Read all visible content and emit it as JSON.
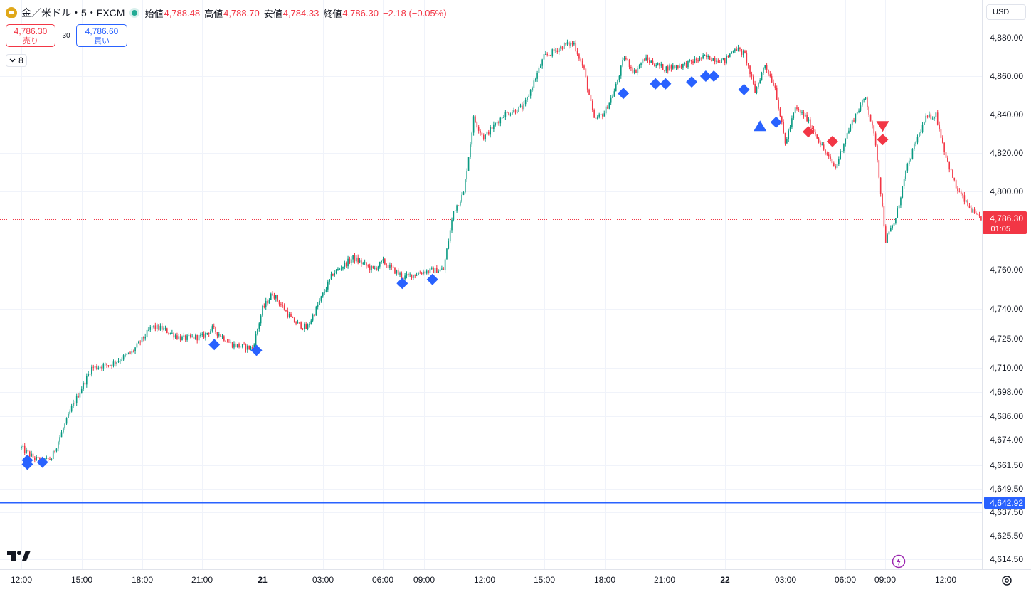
{
  "header": {
    "symbol": "金／米ドル・5・FXCM",
    "open_label": "始値",
    "open_value": "4,788.48",
    "high_label": "高値",
    "high_value": "4,788.70",
    "low_label": "安値",
    "low_value": "4,784.33",
    "close_label": "終値",
    "close_value": "4,786.30",
    "change": "−2.18 (−0.05%)"
  },
  "trade": {
    "sell_price": "4,786.30",
    "sell_label": "売り",
    "spread": "30",
    "buy_price": "4,786.60",
    "buy_label": "買い"
  },
  "collapse": {
    "count": "8"
  },
  "currency": "USD",
  "colors": {
    "up": "#089981",
    "down": "#f23645",
    "blue_marker": "#2962ff",
    "red_marker": "#f23645",
    "grid": "#f0f3fa"
  },
  "icons": [
    "gold-symbol-icon",
    "chevron-down-icon",
    "tradingview-logo-icon",
    "lightning-icon",
    "settings-icon"
  ],
  "chart_data": {
    "type": "candlestick",
    "interval": "5m",
    "y_ticks": [
      "4,880.00",
      "4,860.00",
      "4,840.00",
      "4,820.00",
      "4,800.00",
      "4,760.00",
      "4,740.00",
      "4,725.00",
      "4,710.00",
      "4,698.00",
      "4,686.00",
      "4,674.00",
      "4,661.50",
      "4,649.50",
      "4,637.50",
      "4,625.50",
      "4,614.50"
    ],
    "x_ticks": [
      "12:00",
      "15:00",
      "18:00",
      "21:00",
      "21",
      "03:00",
      "06:00",
      "09:00",
      "12:00",
      "15:00",
      "18:00",
      "21:00",
      "22",
      "03:00",
      "06:00",
      "09:00",
      "12:00"
    ],
    "current_price": "4,786.30",
    "countdown": "01:05",
    "horizontal_line": "4,642.92",
    "path": [
      [
        0,
        4670
      ],
      [
        0.5,
        4666
      ],
      [
        1,
        4663
      ],
      [
        1.5,
        4665
      ],
      [
        2.5,
        4690
      ],
      [
        3.5,
        4710
      ],
      [
        4.5,
        4712
      ],
      [
        5.5,
        4718
      ],
      [
        6.5,
        4731
      ],
      [
        7,
        4730
      ],
      [
        8,
        4725
      ],
      [
        9,
        4726
      ],
      [
        9.5,
        4730
      ],
      [
        10.5,
        4722
      ],
      [
        11.5,
        4720
      ],
      [
        12,
        4740
      ],
      [
        12.5,
        4748
      ],
      [
        13.5,
        4734
      ],
      [
        14.2,
        4730
      ],
      [
        15.5,
        4758
      ],
      [
        16.5,
        4766
      ],
      [
        17.5,
        4760
      ],
      [
        18,
        4764
      ],
      [
        19,
        4756
      ],
      [
        20,
        4759
      ],
      [
        21,
        4760
      ],
      [
        21.5,
        4790
      ],
      [
        22,
        4799
      ],
      [
        22.5,
        4838
      ],
      [
        23,
        4828
      ],
      [
        24,
        4840
      ],
      [
        25,
        4844
      ],
      [
        26,
        4870
      ],
      [
        27,
        4876
      ],
      [
        27.5,
        4877
      ],
      [
        28,
        4863
      ],
      [
        28.5,
        4837
      ],
      [
        29,
        4841
      ],
      [
        29.5,
        4852
      ],
      [
        30,
        4870
      ],
      [
        30.5,
        4862
      ],
      [
        31,
        4869
      ],
      [
        32,
        4864
      ],
      [
        33,
        4866
      ],
      [
        34,
        4870
      ],
      [
        34.5,
        4869
      ],
      [
        35,
        4868
      ],
      [
        35.5,
        4875
      ],
      [
        36,
        4871
      ],
      [
        36.5,
        4852
      ],
      [
        37,
        4866
      ],
      [
        37.5,
        4854
      ],
      [
        38,
        4825
      ],
      [
        38.5,
        4843
      ],
      [
        39,
        4839
      ],
      [
        39.5,
        4830
      ],
      [
        40,
        4820
      ],
      [
        40.5,
        4812
      ],
      [
        41,
        4828
      ],
      [
        41.5,
        4840
      ],
      [
        42,
        4849
      ],
      [
        42.5,
        4825
      ],
      [
        43,
        4775
      ],
      [
        43.5,
        4786
      ],
      [
        44,
        4810
      ],
      [
        44.5,
        4826
      ],
      [
        45,
        4838
      ],
      [
        45.5,
        4840
      ],
      [
        46,
        4818
      ],
      [
        46.5,
        4802
      ],
      [
        47,
        4794
      ],
      [
        47.5,
        4787
      ],
      [
        48,
        4786
      ]
    ],
    "markers": [
      {
        "type": "diamond",
        "color": "blue",
        "x": 0.3,
        "price": 4662
      },
      {
        "type": "diamond",
        "color": "blue",
        "x": 0.3,
        "price": 4664
      },
      {
        "type": "diamond",
        "color": "blue",
        "x": 1.05,
        "price": 4663
      },
      {
        "type": "diamond",
        "color": "blue",
        "x": 9.6,
        "price": 4722
      },
      {
        "type": "diamond",
        "color": "blue",
        "x": 11.7,
        "price": 4719
      },
      {
        "type": "diamond",
        "color": "blue",
        "x": 18.95,
        "price": 4753
      },
      {
        "type": "diamond",
        "color": "blue",
        "x": 20.45,
        "price": 4755
      },
      {
        "type": "diamond",
        "color": "blue",
        "x": 29.95,
        "price": 4851
      },
      {
        "type": "diamond",
        "color": "blue",
        "x": 31.55,
        "price": 4856
      },
      {
        "type": "diamond",
        "color": "blue",
        "x": 32.05,
        "price": 4856
      },
      {
        "type": "diamond",
        "color": "blue",
        "x": 33.35,
        "price": 4857
      },
      {
        "type": "diamond",
        "color": "blue",
        "x": 34.05,
        "price": 4860
      },
      {
        "type": "diamond",
        "color": "blue",
        "x": 34.45,
        "price": 4860
      },
      {
        "type": "diamond",
        "color": "blue",
        "x": 35.95,
        "price": 4853
      },
      {
        "type": "triangle-up",
        "color": "blue",
        "x": 36.75,
        "price": 4834
      },
      {
        "type": "diamond",
        "color": "blue",
        "x": 37.55,
        "price": 4836
      },
      {
        "type": "diamond",
        "color": "red",
        "x": 39.15,
        "price": 4831
      },
      {
        "type": "diamond",
        "color": "red",
        "x": 40.35,
        "price": 4826
      },
      {
        "type": "triangle-down",
        "color": "red",
        "x": 42.85,
        "price": 4834
      },
      {
        "type": "diamond",
        "color": "red",
        "x": 42.85,
        "price": 4827
      }
    ]
  }
}
